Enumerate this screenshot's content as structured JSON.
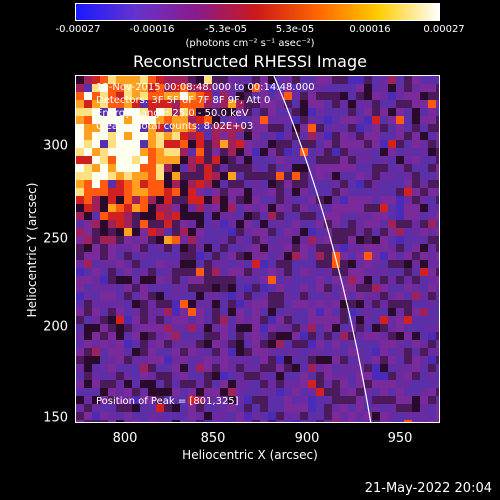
{
  "colorbar": {
    "ticks": [
      "-0.00027",
      "-0.00016",
      "-5.3e-05",
      "5.3e-05",
      "0.00016",
      "0.00027"
    ],
    "units": "(photons cm⁻² s⁻¹ asec⁻²)",
    "colors": [
      "#1a1aff",
      "#6633cc",
      "#8a1a8a",
      "#cc1a1a",
      "#ff6600",
      "#ffcc00",
      "#ffffff"
    ]
  },
  "title": "Reconstructed RHESSI Image",
  "info": {
    "time_range": "13-Nov-2015 00:08:48.000 to 00:14:48.000",
    "detectors": "Detectors: 3F 5F 6F 7F 8F 9F, Att 0",
    "energy": "Energy Range: 25.0 - 50.0 keV",
    "clean": "Clean    Total counts: 8.02E+03"
  },
  "peak": "Position of Peak = [801,325]",
  "axes": {
    "x_label": "Heliocentric X (arcsec)",
    "y_label": "Heliocentric Y (arcsec)",
    "x_ticks": [
      "800",
      "850",
      "900",
      "950"
    ],
    "y_ticks": [
      "300",
      "250",
      "200",
      "150"
    ]
  },
  "timestamp": "21-May-2022 20:04"
}
